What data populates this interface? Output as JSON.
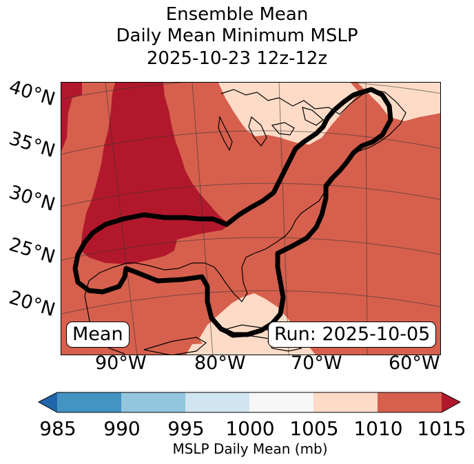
{
  "title": [
    "Ensemble Mean",
    "Daily Mean Minimum MSLP",
    "2025-10-23 12z-12z"
  ],
  "latitudes": [
    "40°N",
    "35°N",
    "30°N",
    "25°N",
    "20°N"
  ],
  "longitudes": [
    "90°W",
    "80°W",
    "70°W",
    "60°W"
  ],
  "mean_label": "Mean",
  "run_label": "Run: 2025-10-05",
  "colorbar": {
    "label": "MSLP Daily Mean (mb)",
    "ticks": [
      "985",
      "990",
      "995",
      "1000",
      "1005",
      "1010",
      "1015"
    ],
    "colors": [
      "#2166ac",
      "#4393c3",
      "#92c5de",
      "#d1e5f0",
      "#f7f7f7",
      "#fddbc7",
      "#d6604d",
      "#b2182b"
    ]
  }
}
